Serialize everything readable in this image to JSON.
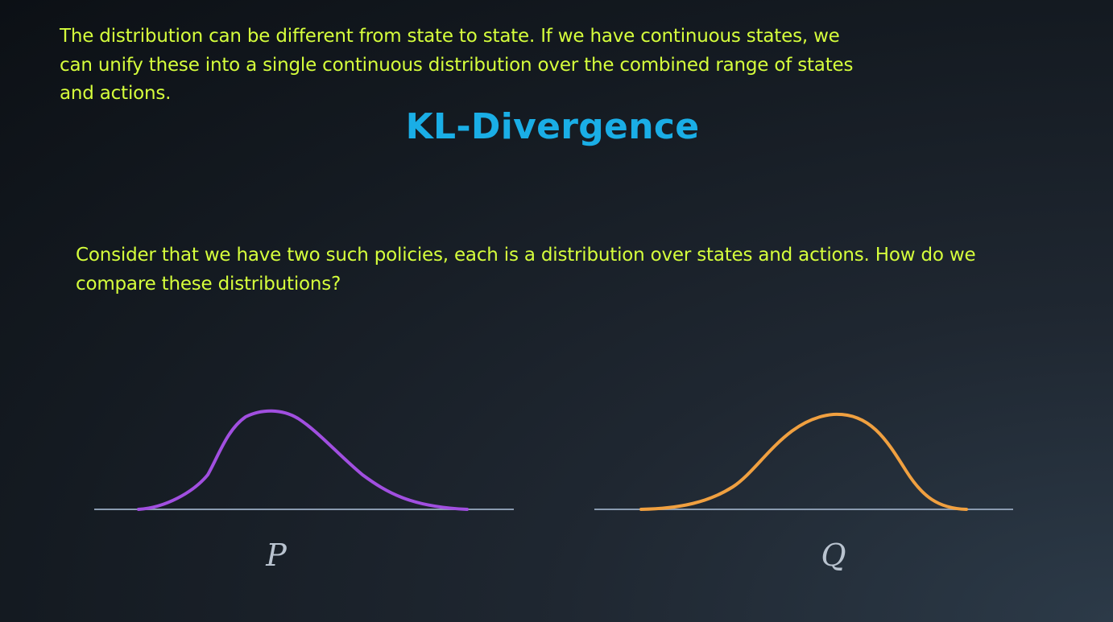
{
  "caption": {
    "text": "The distribution can be different from state to state. If we have continuous states, we can unify these into a single continuous distribution over the combined range of states and actions."
  },
  "slide": {
    "title": "KL-Divergence",
    "question": "Consider that we have two such policies, each is a distribution over states and actions. How do we compare these distributions?"
  },
  "distributions": [
    {
      "label": "P",
      "color": "#a14fe0"
    },
    {
      "label": "Q",
      "color": "#f0a040"
    }
  ],
  "colors": {
    "caption": "#d6ff3c",
    "title": "#1aaee6",
    "axis": "#8a9bb0"
  }
}
